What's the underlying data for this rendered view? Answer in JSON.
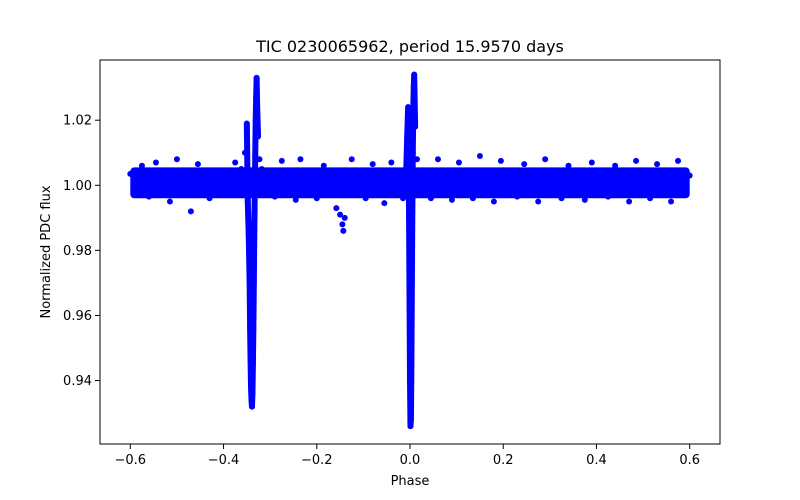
{
  "chart_data": {
    "type": "scatter",
    "title": "TIC 0230065962, period 15.9570 days",
    "xlabel": "Phase",
    "ylabel": "Normalized PDC flux",
    "xlim": [
      -0.665,
      0.665
    ],
    "ylim": [
      0.9205,
      1.0385
    ],
    "x_ticks": [
      -0.6,
      -0.4,
      -0.2,
      0.0,
      0.2,
      0.4,
      0.6
    ],
    "x_tick_labels": [
      "−0.6",
      "−0.4",
      "−0.2",
      "0.0",
      "0.2",
      "0.4",
      "0.6"
    ],
    "y_ticks": [
      0.94,
      0.96,
      0.98,
      1.0,
      1.02
    ],
    "y_tick_labels": [
      "0.94",
      "0.96",
      "0.98",
      "1.00",
      "1.02"
    ],
    "grid": false,
    "legend": "none",
    "marker_color": "#0000ff",
    "series": [
      {
        "points": [
          [
            -0.6,
            1.0035
          ],
          [
            -0.59,
            0.998
          ],
          [
            -0.575,
            1.006
          ],
          [
            -0.56,
            0.9965
          ],
          [
            -0.545,
            1.007
          ],
          [
            -0.53,
            1.0005
          ],
          [
            -0.515,
            0.995
          ],
          [
            -0.5,
            1.008
          ],
          [
            -0.49,
            0.9985
          ],
          [
            -0.47,
            0.992
          ],
          [
            -0.455,
            1.0065
          ],
          [
            -0.445,
            0.999
          ],
          [
            -0.43,
            0.996
          ],
          [
            -0.42,
            1.0045
          ],
          [
            -0.4,
            1.0015
          ],
          [
            -0.385,
            0.9975
          ],
          [
            -0.375,
            1.007
          ],
          [
            -0.362,
            1.005
          ],
          [
            -0.354,
            1.01
          ],
          [
            -0.35,
            1.019
          ],
          [
            -0.348,
            0.995
          ],
          [
            -0.346,
            0.985
          ],
          [
            -0.344,
            0.97
          ],
          [
            -0.343,
            0.956
          ],
          [
            -0.342,
            0.946
          ],
          [
            -0.341,
            0.938
          ],
          [
            -0.34,
            0.934
          ],
          [
            -0.339,
            0.932
          ],
          [
            -0.338,
            0.936
          ],
          [
            -0.337,
            0.945
          ],
          [
            -0.336,
            0.956
          ],
          [
            -0.335,
            0.97
          ],
          [
            -0.334,
            0.986
          ],
          [
            -0.333,
            0.998
          ],
          [
            -0.332,
            1.009
          ],
          [
            -0.331,
            1.02
          ],
          [
            -0.33,
            1.027
          ],
          [
            -0.329,
            1.033
          ],
          [
            -0.328,
            1.025
          ],
          [
            -0.326,
            1.015
          ],
          [
            -0.323,
            1.008
          ],
          [
            -0.318,
            1.005
          ],
          [
            -0.31,
            0.998
          ],
          [
            -0.3,
            1.004
          ],
          [
            -0.29,
            0.9965
          ],
          [
            -0.275,
            1.0075
          ],
          [
            -0.26,
            1.001
          ],
          [
            -0.245,
            0.9955
          ],
          [
            -0.235,
            1.008
          ],
          [
            -0.22,
            0.999
          ],
          [
            -0.2,
            0.996
          ],
          [
            -0.185,
            1.006
          ],
          [
            -0.168,
            0.997
          ],
          [
            -0.158,
            0.993
          ],
          [
            -0.15,
            0.991
          ],
          [
            -0.145,
            0.988
          ],
          [
            -0.143,
            0.986
          ],
          [
            -0.14,
            0.99
          ],
          [
            -0.135,
            0.997
          ],
          [
            -0.125,
            1.008
          ],
          [
            -0.11,
            1.0
          ],
          [
            -0.095,
            0.996
          ],
          [
            -0.08,
            1.0065
          ],
          [
            -0.065,
            0.9985
          ],
          [
            -0.055,
            0.9945
          ],
          [
            -0.04,
            1.007
          ],
          [
            -0.025,
            1.001
          ],
          [
            -0.015,
            0.996
          ],
          [
            -0.008,
            1.005
          ],
          [
            -0.006,
            1.015
          ],
          [
            -0.004,
            1.024
          ],
          [
            -0.003,
            1.009
          ],
          [
            -0.002,
            0.99
          ],
          [
            -0.001,
            0.965
          ],
          [
            0.0,
            0.94
          ],
          [
            0.001,
            0.926
          ],
          [
            0.002,
            0.928
          ],
          [
            0.003,
            0.945
          ],
          [
            0.004,
            0.97
          ],
          [
            0.005,
            0.992
          ],
          [
            0.006,
            1.01
          ],
          [
            0.007,
            1.023
          ],
          [
            0.008,
            1.03
          ],
          [
            0.009,
            1.034
          ],
          [
            0.011,
            1.018
          ],
          [
            0.015,
            1.008
          ],
          [
            0.03,
            1.0
          ],
          [
            0.045,
            0.996
          ],
          [
            0.06,
            1.008
          ],
          [
            0.075,
            0.9985
          ],
          [
            0.09,
            0.9955
          ],
          [
            0.105,
            1.007
          ],
          [
            0.12,
            1.002
          ],
          [
            0.135,
            0.996
          ],
          [
            0.15,
            1.009
          ],
          [
            0.165,
            0.9995
          ],
          [
            0.18,
            0.995
          ],
          [
            0.195,
            1.0075
          ],
          [
            0.21,
            1.001
          ],
          [
            0.23,
            0.9965
          ],
          [
            0.245,
            1.0065
          ],
          [
            0.26,
            0.9985
          ],
          [
            0.275,
            0.995
          ],
          [
            0.29,
            1.008
          ],
          [
            0.31,
            1.0
          ],
          [
            0.325,
            0.996
          ],
          [
            0.34,
            1.006
          ],
          [
            0.36,
            0.999
          ],
          [
            0.375,
            0.9955
          ],
          [
            0.39,
            1.007
          ],
          [
            0.41,
            1.001
          ],
          [
            0.425,
            0.9965
          ],
          [
            0.44,
            1.006
          ],
          [
            0.455,
            0.999
          ],
          [
            0.47,
            0.995
          ],
          [
            0.485,
            1.0075
          ],
          [
            0.5,
            1.0005
          ],
          [
            0.515,
            0.996
          ],
          [
            0.53,
            1.0065
          ],
          [
            0.545,
            0.9985
          ],
          [
            0.56,
            0.995
          ],
          [
            0.575,
            1.0075
          ],
          [
            0.59,
            0.999
          ],
          [
            0.6,
            1.003
          ]
        ]
      }
    ]
  }
}
